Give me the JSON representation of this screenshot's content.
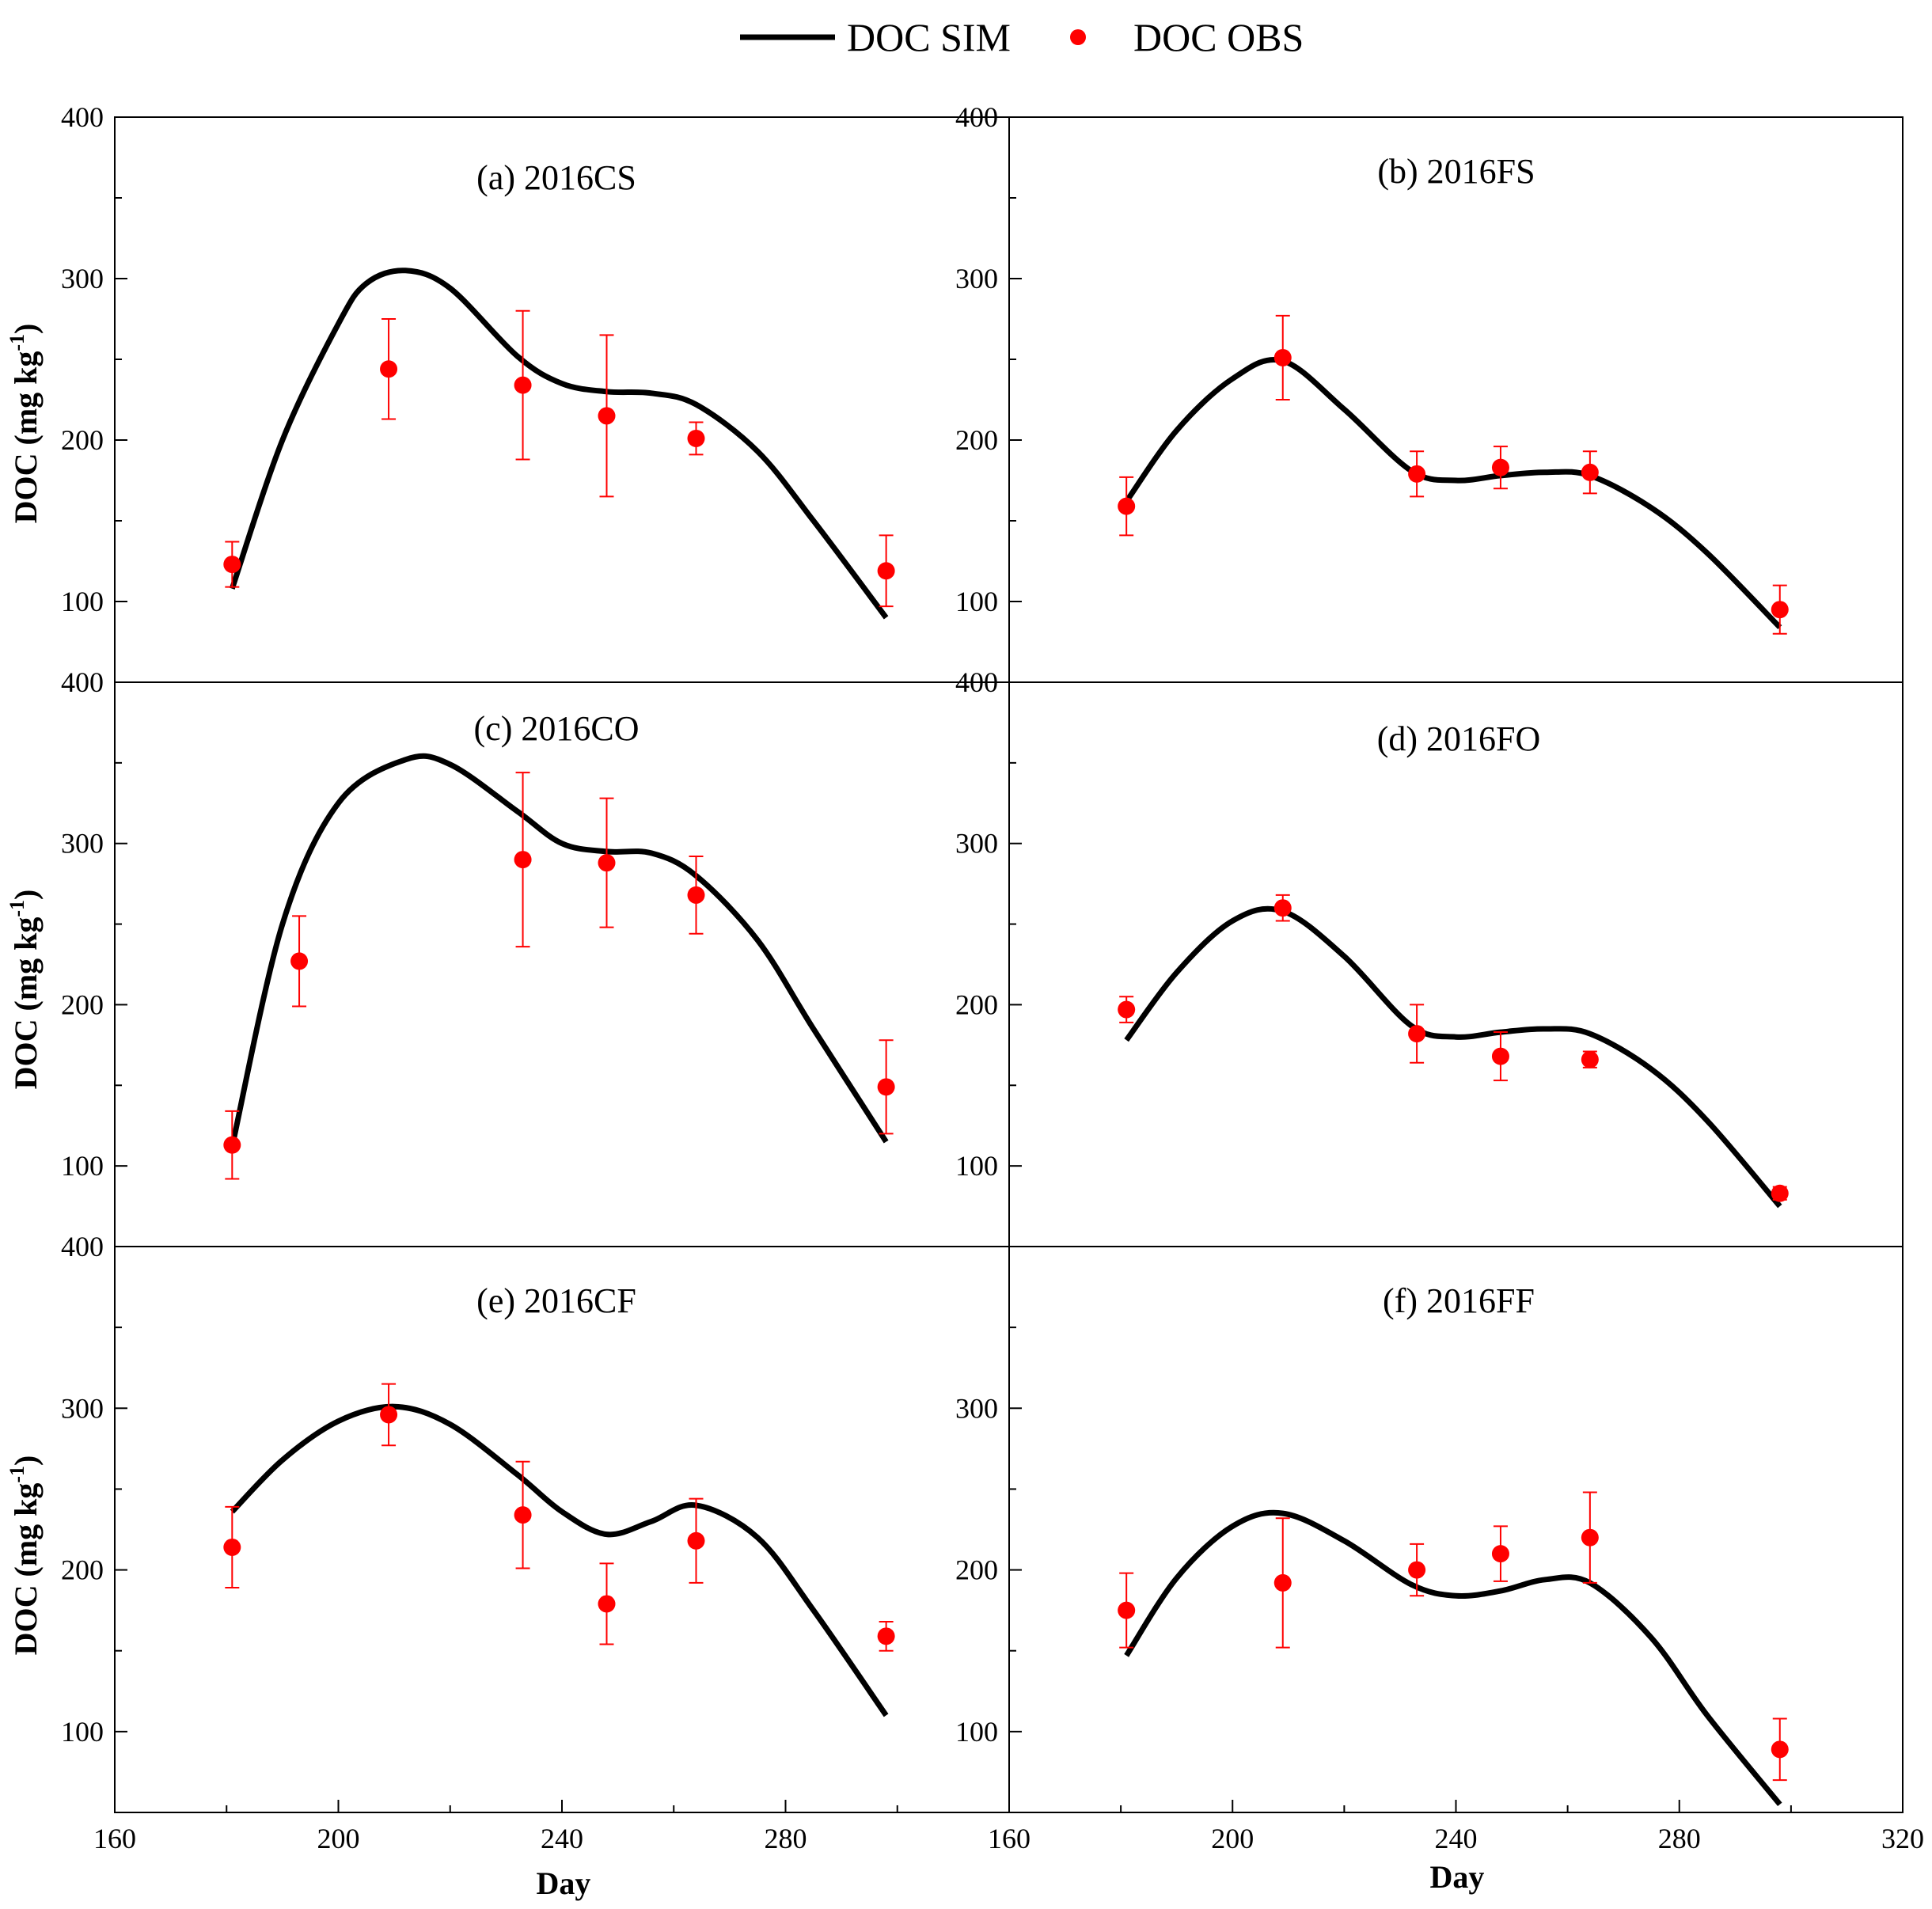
{
  "legend": {
    "sim_label": "DOC SIM",
    "obs_label": "DOC OBS"
  },
  "colors": {
    "sim": "#000000",
    "obs": "#ff0000",
    "frame": "#000000"
  },
  "axes": {
    "ylabel": "DOC (mg kg-1)",
    "ylabel_main": "DOC (mg kg",
    "ylabel_sup": "-1",
    "ylabel_close": ")",
    "xlabel": "Day",
    "xlim_left": [
      160,
      320
    ],
    "xlim_right": [
      160,
      320
    ],
    "x_ticks_left": [
      160,
      200,
      240,
      280
    ],
    "x_ticks_right": [
      160,
      200,
      240,
      280,
      320
    ],
    "ylim": [
      50,
      400
    ],
    "y_ticks": [
      100,
      200,
      300,
      400
    ]
  },
  "chart_data": [
    {
      "type": "line",
      "title": "(a) 2016CS",
      "y_tick_labels": [
        "100",
        "200",
        "300",
        "400"
      ],
      "sim": {
        "name": "DOC SIM",
        "x": [
          181,
          190,
          200,
          205,
          212,
          220,
          232,
          240,
          248,
          256,
          264,
          275,
          285,
          298
        ],
        "y": [
          108,
          200,
          272,
          297,
          305,
          294,
          252,
          235,
          230,
          229,
          222,
          193,
          150,
          90
        ]
      },
      "obs": {
        "name": "DOC OBS",
        "x": [
          181,
          209,
          233,
          248,
          264,
          298
        ],
        "y": [
          123,
          244,
          234,
          215,
          201,
          119
        ],
        "err": [
          14,
          31,
          46,
          50,
          10,
          22
        ]
      }
    },
    {
      "type": "line",
      "title": "(b) 2016FS",
      "y_tick_labels": [
        "100",
        "200",
        "300",
        "400"
      ],
      "sim": {
        "name": "DOC SIM",
        "x": [
          181,
          190,
          200,
          209,
          220,
          232,
          240,
          248,
          256,
          264,
          275,
          285,
          298
        ],
        "y": [
          162,
          206,
          238,
          249,
          219,
          181,
          175,
          178,
          180,
          178,
          158,
          130,
          84
        ]
      },
      "obs": {
        "name": "DOC OBS",
        "x": [
          181,
          209,
          233,
          248,
          264,
          298
        ],
        "y": [
          159,
          251,
          179,
          183,
          180,
          95
        ],
        "err": [
          18,
          26,
          14,
          13,
          13,
          15
        ]
      }
    },
    {
      "type": "line",
      "title": "(c) 2016CO",
      "y_tick_labels": [
        "100",
        "200",
        "300",
        "400"
      ],
      "sim": {
        "name": "DOC SIM",
        "x": [
          181,
          190,
          200,
          212,
          220,
          232,
          240,
          248,
          256,
          264,
          275,
          285,
          298
        ],
        "y": [
          112,
          250,
          325,
          352,
          349,
          320,
          300,
          295,
          294,
          280,
          240,
          185,
          115
        ]
      },
      "obs": {
        "name": "DOC OBS",
        "x": [
          181,
          193,
          233,
          248,
          264,
          298
        ],
        "y": [
          113,
          227,
          290,
          288,
          268,
          149
        ],
        "err": [
          21,
          28,
          54,
          40,
          24,
          29
        ]
      }
    },
    {
      "type": "line",
      "title": "(d) 2016FO",
      "y_tick_labels": [
        "100",
        "200",
        "300",
        "400"
      ],
      "sim": {
        "name": "DOC SIM",
        "x": [
          181,
          190,
          200,
          209,
          220,
          232,
          240,
          248,
          256,
          264,
          275,
          285,
          298
        ],
        "y": [
          178,
          220,
          252,
          258,
          230,
          187,
          180,
          183,
          185,
          182,
          160,
          128,
          75
        ]
      },
      "obs": {
        "name": "DOC OBS",
        "x": [
          181,
          209,
          233,
          248,
          264,
          298
        ],
        "y": [
          197,
          260,
          182,
          168,
          166,
          83
        ],
        "err": [
          8,
          8,
          18,
          15,
          5,
          4
        ]
      }
    },
    {
      "type": "line",
      "title": "(e) 2016CF",
      "y_tick_labels": [
        "100",
        "200",
        "300",
        "400"
      ],
      "sim": {
        "name": "DOC SIM",
        "x": [
          181,
          190,
          200,
          210,
          220,
          232,
          240,
          248,
          256,
          264,
          275,
          285,
          298
        ],
        "y": [
          236,
          268,
          292,
          301,
          290,
          259,
          236,
          222,
          230,
          240,
          220,
          175,
          110
        ]
      },
      "obs": {
        "name": "DOC OBS",
        "x": [
          181,
          209,
          233,
          248,
          264,
          298
        ],
        "y": [
          214,
          296,
          234,
          179,
          218,
          159
        ],
        "err": [
          25,
          19,
          33,
          25,
          26,
          9
        ]
      }
    },
    {
      "type": "line",
      "title": "(f) 2016FF",
      "y_tick_labels": [
        "100",
        "200",
        "300",
        ""
      ],
      "sim": {
        "name": "DOC SIM",
        "x": [
          181,
          190,
          200,
          209,
          220,
          232,
          240,
          248,
          256,
          264,
          275,
          285,
          298
        ],
        "y": [
          147,
          195,
          227,
          235,
          218,
          191,
          184,
          187,
          194,
          192,
          158,
          110,
          55
        ]
      },
      "obs": {
        "name": "DOC OBS",
        "x": [
          181,
          209,
          233,
          248,
          264,
          298
        ],
        "y": [
          175,
          192,
          200,
          210,
          220,
          89
        ],
        "err": [
          23,
          40,
          16,
          17,
          28,
          19
        ]
      }
    }
  ]
}
